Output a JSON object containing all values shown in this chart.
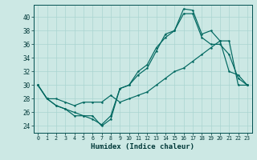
{
  "xlabel": "Humidex (Indice chaleur)",
  "bg_color": "#cce8e4",
  "grid_color": "#aad4d0",
  "line_color": "#006860",
  "xlim": [
    -0.5,
    23.5
  ],
  "ylim": [
    23.0,
    41.8
  ],
  "yticks": [
    24,
    26,
    28,
    30,
    32,
    34,
    36,
    38,
    40
  ],
  "xticks": [
    0,
    1,
    2,
    3,
    4,
    5,
    6,
    7,
    8,
    9,
    10,
    11,
    12,
    13,
    14,
    15,
    16,
    17,
    18,
    19,
    20,
    21,
    22,
    23
  ],
  "line1_y": [
    30.0,
    28.0,
    27.0,
    26.5,
    25.5,
    25.5,
    25.0,
    24.2,
    25.5,
    29.5,
    30.0,
    31.5,
    32.5,
    35.0,
    37.5,
    38.0,
    40.5,
    40.5,
    37.0,
    36.0,
    36.0,
    34.5,
    31.0,
    30.0
  ],
  "line2_y": [
    30.0,
    28.0,
    27.0,
    26.5,
    26.0,
    25.5,
    25.5,
    24.0,
    25.0,
    29.5,
    30.0,
    32.0,
    33.0,
    35.5,
    37.0,
    38.0,
    41.2,
    41.0,
    37.5,
    38.0,
    36.5,
    32.0,
    31.5,
    30.0
  ],
  "line3_y": [
    30.0,
    28.0,
    28.0,
    27.5,
    27.0,
    27.5,
    27.5,
    27.5,
    28.5,
    27.5,
    28.0,
    28.5,
    29.0,
    30.0,
    31.0,
    32.0,
    32.5,
    33.5,
    34.5,
    35.5,
    36.5,
    36.5,
    30.0,
    30.0
  ]
}
